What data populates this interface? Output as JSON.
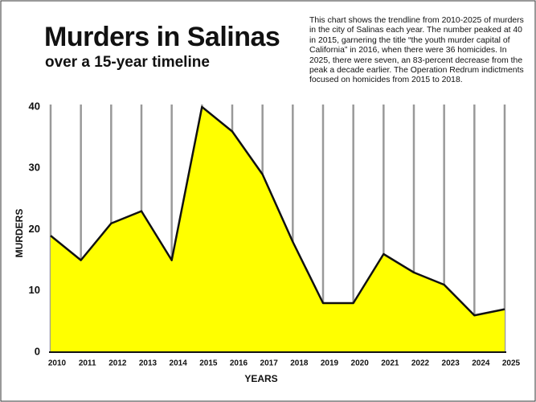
{
  "chart_data": {
    "type": "area",
    "title": "Murders in Salinas",
    "subtitle": "over a 15-year timeline",
    "description": "This chart shows the trendline from 2010-2025 of murders in the city of Salinas each year. The number peaked at 40 in 2015, garnering the title “the youth murder capital of California” in 2016, when there were 36 homicides. In 2025, there were seven, an 83-percent decrease from the peak a decade earlier. The Operation Redrum indictments focused on homicides from 2015 to 2018.",
    "x_label": "YEARS",
    "y_label": "MURDERS",
    "x": [
      2010,
      2011,
      2012,
      2013,
      2014,
      2015,
      2016,
      2017,
      2018,
      2019,
      2020,
      2021,
      2022,
      2023,
      2024,
      2025
    ],
    "values": [
      19,
      15,
      21,
      23,
      15,
      40,
      36,
      29,
      18,
      8,
      8,
      16,
      13,
      11,
      6,
      7
    ],
    "color": "#ffff00",
    "xlim": [
      2010,
      2025
    ],
    "xticks": [
      2010,
      2011,
      2012,
      2013,
      2014,
      2015,
      2016,
      2017,
      2018,
      2019,
      2020,
      2021,
      2022,
      2023,
      2024,
      2025
    ],
    "ylim": [
      0,
      40
    ],
    "yticks": [
      0,
      10,
      20,
      30,
      40
    ],
    "grid": true
  }
}
